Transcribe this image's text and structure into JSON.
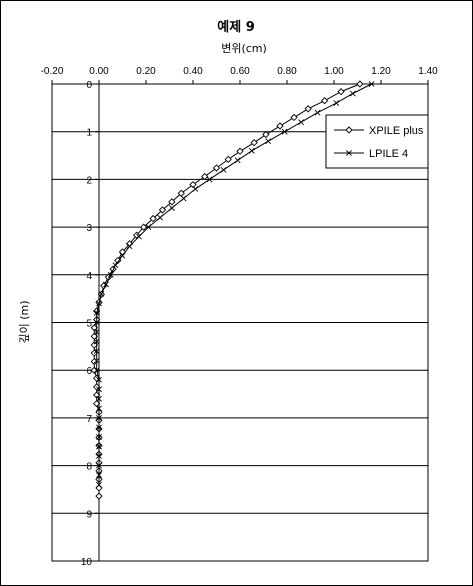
{
  "chart_data": {
    "type": "line",
    "title": "예제 9",
    "xlabel": "변위(cm)",
    "ylabel": "깊이 (m)",
    "xlim": [
      -0.2,
      1.4
    ],
    "ylim": [
      0,
      10
    ],
    "y_inverted": true,
    "x_axis_position": "top",
    "x_ticks": [
      "-0.20",
      "0.00",
      "0.20",
      "0.40",
      "0.60",
      "0.80",
      "1.00",
      "1.20",
      "1.40"
    ],
    "y_ticks": [
      "0",
      "1",
      "2",
      "3",
      "4",
      "5",
      "6",
      "7",
      "8",
      "9",
      "10"
    ],
    "grid": "horizontal",
    "legend_position": "top-right",
    "series": [
      {
        "name": "XPILE plus",
        "marker": "diamond",
        "color": "#000000",
        "points": [
          [
            1.11,
            0.0
          ],
          [
            1.03,
            0.16
          ],
          [
            0.96,
            0.35
          ],
          [
            0.89,
            0.52
          ],
          [
            0.83,
            0.7
          ],
          [
            0.77,
            0.88
          ],
          [
            0.71,
            1.06
          ],
          [
            0.66,
            1.23
          ],
          [
            0.6,
            1.41
          ],
          [
            0.55,
            1.58
          ],
          [
            0.5,
            1.76
          ],
          [
            0.45,
            1.94
          ],
          [
            0.4,
            2.11
          ],
          [
            0.35,
            2.29
          ],
          [
            0.31,
            2.47
          ],
          [
            0.27,
            2.64
          ],
          [
            0.23,
            2.82
          ],
          [
            0.19,
            3.0
          ],
          [
            0.16,
            3.17
          ],
          [
            0.13,
            3.35
          ],
          [
            0.1,
            3.52
          ],
          [
            0.08,
            3.7
          ],
          [
            0.06,
            3.88
          ],
          [
            0.04,
            4.05
          ],
          [
            0.02,
            4.23
          ],
          [
            0.01,
            4.41
          ],
          [
            0.0,
            4.58
          ],
          [
            -0.01,
            4.76
          ],
          [
            -0.01,
            4.94
          ],
          [
            -0.02,
            5.11
          ],
          [
            -0.02,
            5.29
          ],
          [
            -0.02,
            5.47
          ],
          [
            -0.02,
            5.64
          ],
          [
            -0.02,
            5.82
          ],
          [
            -0.02,
            6.0
          ],
          [
            -0.01,
            6.17
          ],
          [
            -0.01,
            6.35
          ],
          [
            -0.01,
            6.52
          ],
          [
            -0.01,
            6.7
          ],
          [
            0.0,
            6.88
          ],
          [
            0.0,
            7.05
          ],
          [
            0.0,
            7.23
          ],
          [
            0.0,
            7.41
          ],
          [
            0.0,
            7.58
          ],
          [
            0.0,
            7.76
          ],
          [
            0.0,
            7.94
          ],
          [
            0.0,
            8.11
          ],
          [
            0.0,
            8.29
          ],
          [
            0.0,
            8.47
          ],
          [
            0.0,
            8.64
          ]
        ]
      },
      {
        "name": "LPILE 4",
        "marker": "x",
        "color": "#000000",
        "points": [
          [
            1.16,
            0.0
          ],
          [
            1.08,
            0.2
          ],
          [
            1.01,
            0.4
          ],
          [
            0.93,
            0.6
          ],
          [
            0.86,
            0.8
          ],
          [
            0.79,
            1.0
          ],
          [
            0.72,
            1.2
          ],
          [
            0.65,
            1.4
          ],
          [
            0.59,
            1.6
          ],
          [
            0.53,
            1.8
          ],
          [
            0.47,
            2.0
          ],
          [
            0.41,
            2.2
          ],
          [
            0.36,
            2.4
          ],
          [
            0.31,
            2.6
          ],
          [
            0.26,
            2.8
          ],
          [
            0.21,
            3.0
          ],
          [
            0.17,
            3.2
          ],
          [
            0.13,
            3.4
          ],
          [
            0.1,
            3.6
          ],
          [
            0.07,
            3.8
          ],
          [
            0.05,
            4.0
          ],
          [
            0.03,
            4.2
          ],
          [
            0.01,
            4.4
          ],
          [
            0.0,
            4.6
          ],
          [
            -0.01,
            4.8
          ],
          [
            -0.01,
            5.0
          ],
          [
            -0.01,
            5.2
          ],
          [
            -0.01,
            5.4
          ],
          [
            -0.01,
            5.6
          ],
          [
            -0.01,
            5.8
          ],
          [
            -0.01,
            6.0
          ],
          [
            0.0,
            6.2
          ],
          [
            0.0,
            6.4
          ],
          [
            0.0,
            6.6
          ],
          [
            0.0,
            6.8
          ],
          [
            0.0,
            7.0
          ],
          [
            0.0,
            7.2
          ],
          [
            0.0,
            7.4
          ],
          [
            0.0,
            7.6
          ],
          [
            0.0,
            7.8
          ],
          [
            0.0,
            8.0
          ],
          [
            0.0,
            8.2
          ],
          [
            0.0,
            8.4
          ]
        ]
      }
    ]
  }
}
